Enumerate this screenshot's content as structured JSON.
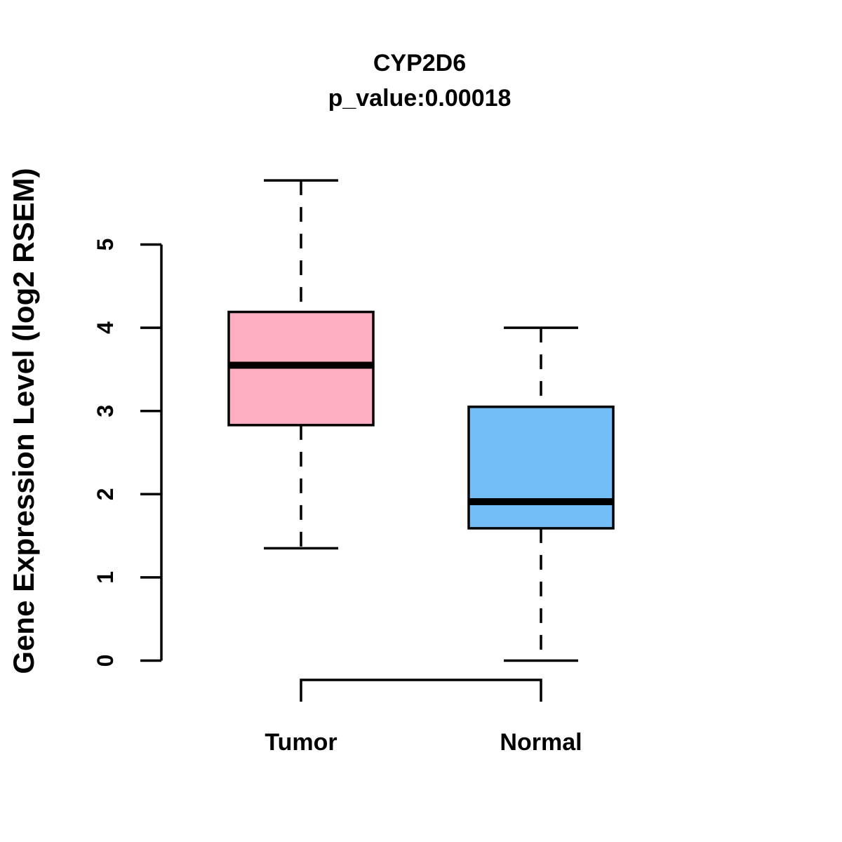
{
  "chart_data": {
    "type": "boxplot",
    "title": "CYP2D6",
    "subtitle": "p_value:0.00018",
    "ylabel": "Gene Expression Level (log2 RSEM)",
    "xlabel": "",
    "ylim": [
      0,
      5
    ],
    "yticks": [
      "0",
      "1",
      "2",
      "3",
      "4",
      "5"
    ],
    "grid": false,
    "legend": "none",
    "categories": [
      "Tumor",
      "Normal"
    ],
    "series": [
      {
        "name": "Tumor",
        "fill": "#FFAFC1",
        "whisker_low": 1.35,
        "q1": 2.83,
        "median": 3.55,
        "q3": 4.19,
        "whisker_high": 5.77
      },
      {
        "name": "Normal",
        "fill": "#74BEF7",
        "whisker_low": 0.0,
        "q1": 1.59,
        "median": 1.91,
        "q3": 3.05,
        "whisker_high": 4.0
      }
    ],
    "stroke_color": "#000000",
    "comparison_bracket": {
      "from": "Tumor",
      "to": "Normal"
    }
  }
}
